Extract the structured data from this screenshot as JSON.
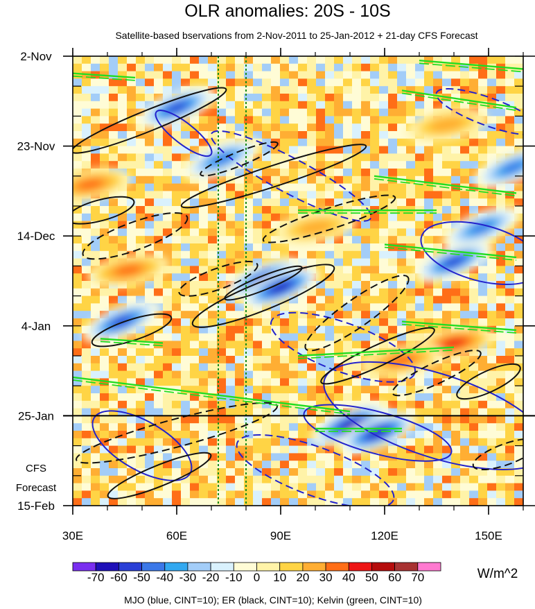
{
  "chart_data": {
    "type": "heatmap",
    "title": "OLR anomalies: 20S - 10S",
    "subtitle": "Satellite-based bservations from 2-Nov-2011 to 25-Jan-2012 + 21-day CFS Forecast",
    "x_ticks": [
      {
        "value": 30,
        "label": "30E"
      },
      {
        "value": 60,
        "label": "60E"
      },
      {
        "value": 90,
        "label": "90E"
      },
      {
        "value": 120,
        "label": "120E"
      },
      {
        "value": 150,
        "label": "150E"
      }
    ],
    "xlim": [
      30,
      160
    ],
    "y_ticks": [
      {
        "day": 0,
        "label": "2-Nov"
      },
      {
        "day": 21,
        "label": "23-Nov"
      },
      {
        "day": 42,
        "label": "14-Dec"
      },
      {
        "day": 63,
        "label": "4-Jan"
      },
      {
        "day": 84,
        "label": "25-Jan"
      },
      {
        "day": 105,
        "label": "15-Feb"
      }
    ],
    "ylim_days": [
      0,
      105
    ],
    "forecast_label": [
      "CFS",
      "Forecast"
    ],
    "forecast_start": "25-Jan",
    "unit": "W/m^2",
    "colorbar": {
      "labels": [
        "-70",
        "-60",
        "-50",
        "-40",
        "-30",
        "-20",
        "-10",
        "0",
        "10",
        "20",
        "30",
        "40",
        "50",
        "60",
        "70"
      ],
      "colors": [
        "#7a2ef0",
        "#1f10b8",
        "#2a3fd6",
        "#3b78e8",
        "#32a8f0",
        "#a3cdf8",
        "#d9f1fd",
        "#fffcd6",
        "#fff3a8",
        "#ffd445",
        "#ffae33",
        "#ff6e17",
        "#ee1515",
        "#b50c0c",
        "#a83232",
        "#ff7ad0"
      ]
    },
    "reference_lines_lon": [
      72,
      80
    ],
    "footer": "MJO (blue, CINT=10); ER (black, CINT=10); Kelvin (green, CINT=10)",
    "anomaly_centers": [
      {
        "lon": 44,
        "day": 62,
        "value": -60
      },
      {
        "lon": 60,
        "day": 12,
        "value": -60
      },
      {
        "lon": 73,
        "day": 24,
        "value": -50
      },
      {
        "lon": 85,
        "day": 52,
        "value": -60
      },
      {
        "lon": 90,
        "day": 54,
        "value": -70
      },
      {
        "lon": 110,
        "day": 86,
        "value": -70
      },
      {
        "lon": 118,
        "day": 88,
        "value": -70
      },
      {
        "lon": 140,
        "day": 48,
        "value": -60
      },
      {
        "lon": 148,
        "day": 40,
        "value": -50
      },
      {
        "lon": 157,
        "day": 26,
        "value": -50
      },
      {
        "lon": 35,
        "day": 30,
        "value": 40
      },
      {
        "lon": 46,
        "day": 50,
        "value": 40
      },
      {
        "lon": 140,
        "day": 67,
        "value": 50
      },
      {
        "lon": 125,
        "day": 71,
        "value": 40
      },
      {
        "lon": 100,
        "day": 40,
        "value": 30
      },
      {
        "lon": 138,
        "day": 16,
        "value": 30
      }
    ],
    "mjo_contours": [
      {
        "lon": 62,
        "day": 18,
        "a_deg": 10,
        "b_deg": 3,
        "angle": 38,
        "style": "solid"
      },
      {
        "lon": 93,
        "day": 28,
        "a_deg": 26,
        "b_deg": 5,
        "angle": 28,
        "style": "dashed"
      },
      {
        "lon": 150,
        "day": 13,
        "a_deg": 16,
        "b_deg": 4,
        "angle": 20,
        "style": "dashed"
      },
      {
        "lon": 108,
        "day": 68,
        "a_deg": 22,
        "b_deg": 7,
        "angle": 20,
        "style": "dashed"
      },
      {
        "lon": 135,
        "day": 84,
        "a_deg": 34,
        "b_deg": 12,
        "angle": 18,
        "style": "solid"
      },
      {
        "lon": 118,
        "day": 88,
        "a_deg": 22,
        "b_deg": 6,
        "angle": 15,
        "style": "solid"
      },
      {
        "lon": 148,
        "day": 46,
        "a_deg": 18,
        "b_deg": 8,
        "angle": 15,
        "style": "solid"
      },
      {
        "lon": 50,
        "day": 91,
        "a_deg": 16,
        "b_deg": 7,
        "angle": 30,
        "style": "solid"
      },
      {
        "lon": 100,
        "day": 97,
        "a_deg": 24,
        "b_deg": 7,
        "angle": 20,
        "style": "dashed"
      }
    ],
    "er_contours": [
      {
        "lon": 52,
        "day": 15,
        "a_deg": 24,
        "b_deg": 3,
        "angle": -22,
        "style": "solid"
      },
      {
        "lon": 88,
        "day": 28,
        "a_deg": 28,
        "b_deg": 3,
        "angle": -18,
        "style": "solid"
      },
      {
        "lon": 85,
        "day": 56,
        "a_deg": 22,
        "b_deg": 4,
        "angle": -22,
        "style": "solid"
      },
      {
        "lon": 85,
        "day": 53,
        "a_deg": 12,
        "b_deg": 2,
        "angle": -22,
        "style": "solid"
      },
      {
        "lon": 47,
        "day": 64,
        "a_deg": 12,
        "b_deg": 3,
        "angle": -18,
        "style": "solid"
      },
      {
        "lon": 118,
        "day": 70,
        "a_deg": 18,
        "b_deg": 3,
        "angle": -25,
        "style": "solid"
      },
      {
        "lon": 150,
        "day": 76,
        "a_deg": 10,
        "b_deg": 3,
        "angle": -25,
        "style": "solid"
      },
      {
        "lon": 38,
        "day": 36,
        "a_deg": 10,
        "b_deg": 3,
        "angle": -15,
        "style": "solid"
      },
      {
        "lon": 55,
        "day": 98,
        "a_deg": 16,
        "b_deg": 3,
        "angle": -22,
        "style": "solid"
      },
      {
        "lon": 78,
        "day": 24,
        "a_deg": 12,
        "b_deg": 2,
        "angle": -22,
        "style": "dashed"
      },
      {
        "lon": 48,
        "day": 42,
        "a_deg": 16,
        "b_deg": 4,
        "angle": -20,
        "style": "dashed"
      },
      {
        "lon": 104,
        "day": 38,
        "a_deg": 20,
        "b_deg": 3,
        "angle": -18,
        "style": "dashed"
      },
      {
        "lon": 72,
        "day": 52,
        "a_deg": 12,
        "b_deg": 3,
        "angle": -20,
        "style": "dashed"
      },
      {
        "lon": 112,
        "day": 60,
        "a_deg": 18,
        "b_deg": 4,
        "angle": -35,
        "style": "dashed"
      },
      {
        "lon": 135,
        "day": 74,
        "a_deg": 14,
        "b_deg": 3,
        "angle": -25,
        "style": "dashed"
      },
      {
        "lon": 60,
        "day": 88,
        "a_deg": 30,
        "b_deg": 4,
        "angle": -15,
        "style": "dashed"
      },
      {
        "lon": 155,
        "day": 93,
        "a_deg": 10,
        "b_deg": 3,
        "angle": -20,
        "style": "dashed"
      }
    ],
    "kelvin_segments": [
      {
        "lon1": 30,
        "day1": 4,
        "lon2": 48,
        "day2": 5
      },
      {
        "lon1": 130,
        "day1": 1,
        "lon2": 160,
        "day2": 3
      },
      {
        "lon1": 125,
        "day1": 8,
        "lon2": 158,
        "day2": 12
      },
      {
        "lon1": 117,
        "day1": 28,
        "lon2": 158,
        "day2": 32
      },
      {
        "lon1": 95,
        "day1": 36,
        "lon2": 135,
        "day2": 36
      },
      {
        "lon1": 120,
        "day1": 44,
        "lon2": 158,
        "day2": 47
      },
      {
        "lon1": 125,
        "day1": 62,
        "lon2": 158,
        "day2": 64
      },
      {
        "lon1": 95,
        "day1": 70,
        "lon2": 140,
        "day2": 68
      },
      {
        "lon1": 30,
        "day1": 75,
        "lon2": 110,
        "day2": 83
      },
      {
        "lon1": 38,
        "day1": 66,
        "lon2": 56,
        "day2": 67
      },
      {
        "lon1": 100,
        "day1": 87,
        "lon2": 125,
        "day2": 87
      }
    ]
  }
}
